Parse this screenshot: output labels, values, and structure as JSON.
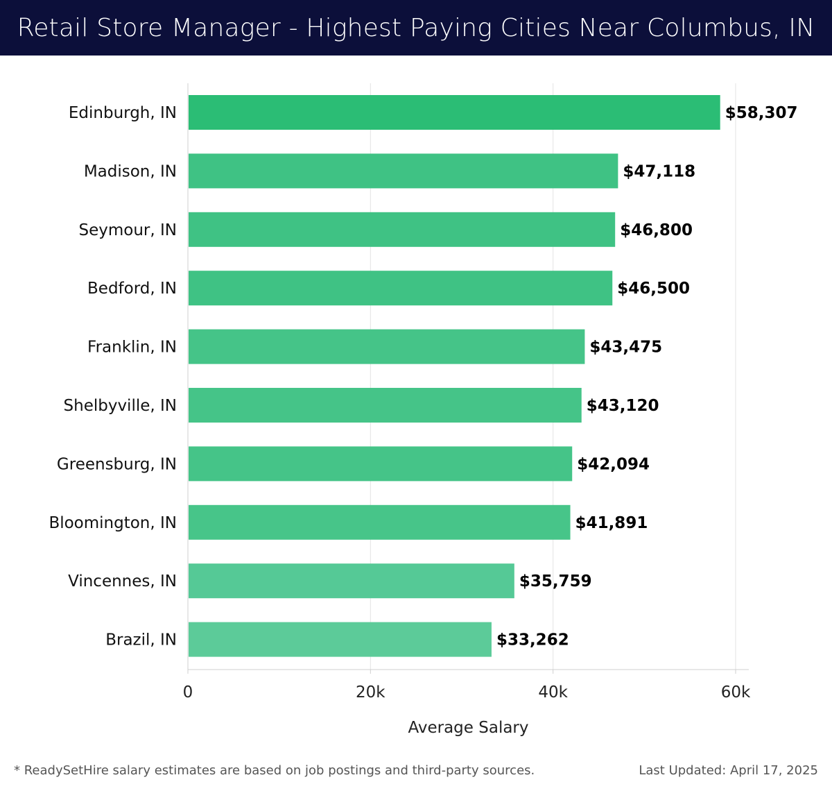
{
  "header": {
    "title": "Retail Store Manager - Highest Paying Cities Near Columbus, IN"
  },
  "chart_data": {
    "type": "bar",
    "orientation": "horizontal",
    "title": "Retail Store Manager - Highest Paying Cities Near Columbus, IN",
    "xlabel": "Average Salary",
    "ylabel": "",
    "xlim": [
      0,
      62000
    ],
    "x_ticks": [
      0,
      20000,
      40000,
      60000
    ],
    "x_tick_labels": [
      "0",
      "20k",
      "40k",
      "60k"
    ],
    "grid": "vertical",
    "categories": [
      "Edinburgh, IN",
      "Madison, IN",
      "Seymour, IN",
      "Bedford, IN",
      "Franklin, IN",
      "Shelbyville, IN",
      "Greensburg, IN",
      "Bloomington, IN",
      "Vincennes, IN",
      "Brazil, IN"
    ],
    "values": [
      58307,
      47118,
      46800,
      46500,
      43475,
      43120,
      42094,
      41891,
      35759,
      33262
    ],
    "value_labels": [
      "$58,307",
      "$47,118",
      "$46,800",
      "$46,500",
      "$43,475",
      "$43,120",
      "$42,094",
      "$41,891",
      "$35,759",
      "$33,262"
    ],
    "bar_colors": [
      "#2bbd75",
      "#3fc284",
      "#3fc284",
      "#3fc284",
      "#45c488",
      "#45c488",
      "#45c488",
      "#47c589",
      "#55c996",
      "#5ccb99"
    ],
    "grid_color": "#e3e3e3",
    "axis_color": "#cfcfcf"
  },
  "footer": {
    "note": "* ReadySetHire salary estimates are based on job postings and third-party sources.",
    "updated": "Last Updated: April 17, 2025"
  }
}
